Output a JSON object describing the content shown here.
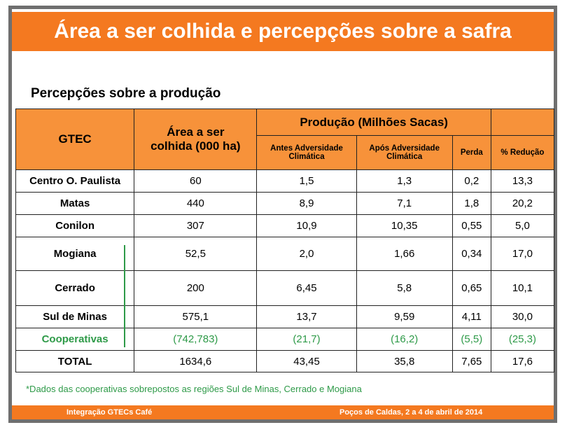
{
  "header": {
    "title": "Área a ser colhida e percepções sobre a safra"
  },
  "subtitle": "Percepções sobre a produção",
  "table": {
    "head": {
      "gtec": "GTEC",
      "area": "Área a ser colhida (000 ha)",
      "producao": "Produção (Milhões Sacas)",
      "antes": "Antes Adversidade Climática",
      "apos": "Após Adversidade Climática",
      "perda": "Perda",
      "reducao": "% Redução"
    },
    "rows": [
      [
        "Centro O. Paulista",
        "60",
        "1,5",
        "1,3",
        "0,2",
        "13,3"
      ],
      [
        "Matas",
        "440",
        "8,9",
        "7,1",
        "1,8",
        "20,2"
      ],
      [
        "Conilon",
        "307",
        "10,9",
        "10,35",
        "0,55",
        "5,0"
      ],
      [
        "Mogiana",
        "52,5",
        "2,0",
        "1,66",
        "0,34",
        "17,0"
      ],
      [
        "Cerrado",
        "200",
        "6,45",
        "5,8",
        "0,65",
        "10,1"
      ],
      [
        "Sul de Minas",
        "575,1",
        "13,7",
        "9,59",
        "4,11",
        "30,0"
      ],
      [
        "Cooperativas",
        "(742,783)",
        "(21,7)",
        "(16,2)",
        "(5,5)",
        "(25,3)"
      ],
      [
        "TOTAL",
        "1634,6",
        "43,45",
        "35,8",
        "7,65",
        "17,6"
      ]
    ]
  },
  "footnote": "*Dados das cooperativas sobrepostos as regiões Sul de Minas, Cerrado e Mogiana",
  "footer": {
    "left": "Integração GTECs Café",
    "right": "Poços de Caldas, 2 a 4 de abril de 2014"
  }
}
